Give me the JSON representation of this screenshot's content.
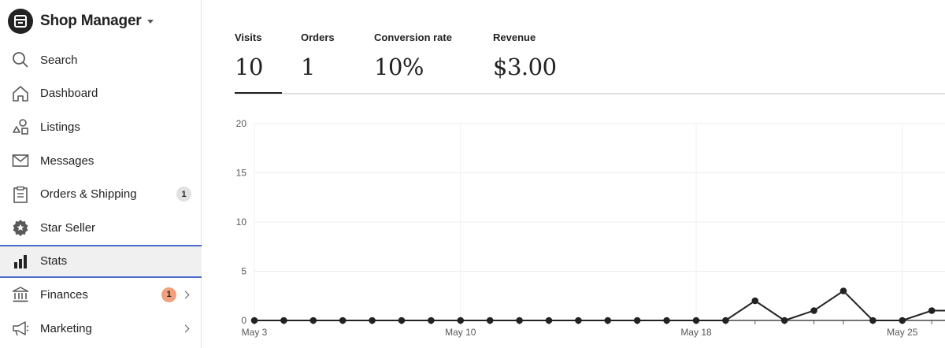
{
  "brand": {
    "title": "Shop Manager"
  },
  "nav": {
    "items": [
      {
        "label": "Search",
        "icon": "search-icon"
      },
      {
        "label": "Dashboard",
        "icon": "home-icon"
      },
      {
        "label": "Listings",
        "icon": "shapes-icon"
      },
      {
        "label": "Messages",
        "icon": "envelope-icon"
      },
      {
        "label": "Orders & Shipping",
        "icon": "clipboard-icon",
        "badge": "1"
      },
      {
        "label": "Star Seller",
        "icon": "star-badge-icon"
      },
      {
        "label": "Stats",
        "icon": "bar-chart-icon",
        "active": true
      },
      {
        "label": "Finances",
        "icon": "bank-icon",
        "badge": "1"
      },
      {
        "label": "Marketing",
        "icon": "megaphone-icon"
      }
    ]
  },
  "kpis": [
    {
      "label": "Visits",
      "value": "10",
      "selected": true
    },
    {
      "label": "Orders",
      "value": "1"
    },
    {
      "label": "Conversion rate",
      "value": "10%"
    },
    {
      "label": "Revenue",
      "value": "$3.00"
    }
  ],
  "colors": {
    "active_border": "#4d6bc6",
    "badge_gray": "#e1e1e1",
    "badge_orange": "#f1a07e",
    "line": "#222222"
  },
  "chart_data": {
    "type": "line",
    "y_ticks": [
      "0",
      "5",
      "10",
      "15",
      "20"
    ],
    "ylim": [
      0,
      20
    ],
    "x_labels": [
      "May 3",
      "May 10",
      "May 18",
      "May 25"
    ],
    "x_label_days": [
      3,
      10,
      18,
      25
    ],
    "x": [
      3,
      4,
      5,
      6,
      7,
      8,
      9,
      10,
      11,
      12,
      13,
      14,
      15,
      16,
      17,
      18,
      19,
      20,
      21,
      22,
      23,
      24,
      25,
      26,
      27
    ],
    "values": [
      0,
      0,
      0,
      0,
      0,
      0,
      0,
      0,
      0,
      0,
      0,
      0,
      0,
      0,
      0,
      0,
      0,
      2,
      0,
      1,
      3,
      0,
      0,
      1,
      1
    ],
    "grid": true
  }
}
